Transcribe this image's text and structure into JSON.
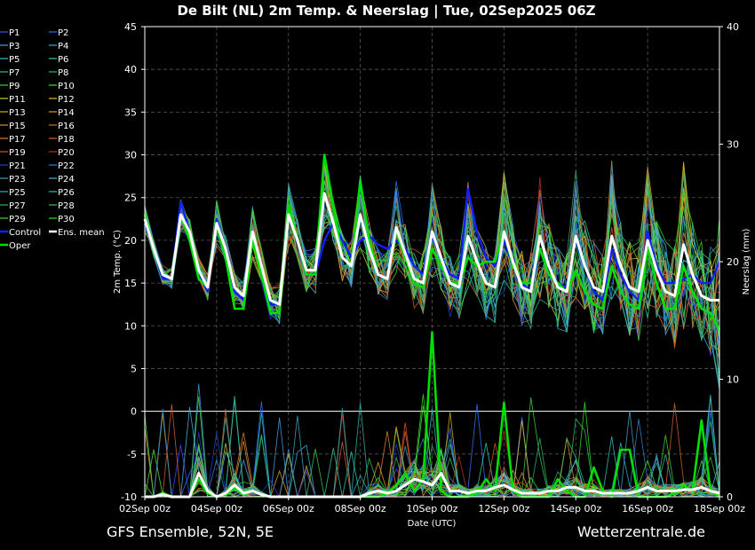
{
  "chart_data": {
    "type": "line",
    "title": "De Bilt  (NL)  2m Temp. & Neerslag | Tue, 02Sep2025 06Z",
    "xlabel": "Date (UTC)",
    "ylabel_left": "2m Temp. (°C)",
    "ylabel_right": "Neerslag (mm)",
    "footer_left": "GFS Ensemble, 52N, 5E",
    "footer_right": "Wetterzentrale.de",
    "x_ticks": [
      "02Sep 00z",
      "04Sep 00z",
      "06Sep 00z",
      "08Sep 00z",
      "10Sep 00z",
      "12Sep 00z",
      "14Sep 00z",
      "16Sep 00z",
      "18Sep 00z"
    ],
    "x_range_days": [
      0,
      16
    ],
    "ylim_left": [
      -10,
      45
    ],
    "ylim_right": [
      0,
      40
    ],
    "left_ticks": [
      -10,
      -5,
      0,
      5,
      10,
      15,
      20,
      25,
      30,
      35,
      40,
      45
    ],
    "right_ticks": [
      0,
      10,
      20,
      30,
      40
    ],
    "zero_line": 0,
    "grid": true,
    "legend_position": "left",
    "legend": [
      {
        "name": "P1",
        "color": "#3050ff"
      },
      {
        "name": "P2",
        "color": "#3070ff"
      },
      {
        "name": "P3",
        "color": "#40a0e0"
      },
      {
        "name": "P4",
        "color": "#30b0d0"
      },
      {
        "name": "P5",
        "color": "#30c0c0"
      },
      {
        "name": "P6",
        "color": "#30d0a0"
      },
      {
        "name": "P7",
        "color": "#30c080"
      },
      {
        "name": "P8",
        "color": "#30c060"
      },
      {
        "name": "P9",
        "color": "#40d040"
      },
      {
        "name": "P10",
        "color": "#50e030"
      },
      {
        "name": "P11",
        "color": "#c0d030"
      },
      {
        "name": "P12",
        "color": "#e0c030"
      },
      {
        "name": "P13",
        "color": "#d0b020"
      },
      {
        "name": "P14",
        "color": "#e0a020"
      },
      {
        "name": "P15",
        "color": "#d09040"
      },
      {
        "name": "P16",
        "color": "#c07040"
      },
      {
        "name": "P17",
        "color": "#e08030"
      },
      {
        "name": "P18",
        "color": "#d06030"
      },
      {
        "name": "P19",
        "color": "#e05020"
      },
      {
        "name": "P20",
        "color": "#c03020"
      },
      {
        "name": "P21",
        "color": "#2040d0"
      },
      {
        "name": "P22",
        "color": "#3080d0"
      },
      {
        "name": "P23",
        "color": "#40a0c0"
      },
      {
        "name": "P24",
        "color": "#50b0d0"
      },
      {
        "name": "P25",
        "color": "#30b0b0"
      },
      {
        "name": "P26",
        "color": "#30c0a0"
      },
      {
        "name": "P27",
        "color": "#30b070"
      },
      {
        "name": "P28",
        "color": "#40c050"
      },
      {
        "name": "P29",
        "color": "#50d040"
      },
      {
        "name": "P30",
        "color": "#30e020"
      },
      {
        "name": "Control",
        "color": "#1020ff"
      },
      {
        "name": "Ens. mean",
        "color": "#ffffff"
      },
      {
        "name": "Oper",
        "color": "#00e000"
      }
    ],
    "series": [
      {
        "name": "Ens. mean",
        "axis": "left",
        "x": [
          0,
          0.25,
          0.5,
          0.75,
          1,
          1.25,
          1.5,
          1.75,
          2,
          2.25,
          2.5,
          2.75,
          3,
          3.25,
          3.5,
          3.75,
          4,
          4.25,
          4.5,
          4.75,
          5,
          5.25,
          5.5,
          5.75,
          6,
          6.25,
          6.5,
          6.75,
          7,
          7.25,
          7.5,
          7.75,
          8,
          8.25,
          8.5,
          8.75,
          9,
          9.25,
          9.5,
          9.75,
          10,
          10.25,
          10.5,
          10.75,
          11,
          11.25,
          11.5,
          11.75,
          12,
          12.25,
          12.5,
          12.75,
          13,
          13.25,
          13.5,
          13.75,
          14,
          14.25,
          14.5,
          14.75,
          15,
          15.25,
          15.5,
          15.75,
          16
        ],
        "values": [
          22.5,
          19,
          16,
          15.5,
          23,
          21,
          16.5,
          14.5,
          22,
          19,
          14.5,
          13.5,
          21,
          17,
          13,
          12.5,
          23,
          20,
          16.5,
          16.5,
          25.5,
          22,
          18,
          17,
          23,
          19,
          16,
          15.5,
          21.5,
          18.5,
          15.5,
          15,
          21,
          18,
          15,
          14.5,
          20.5,
          17.5,
          15,
          14.5,
          21,
          17.5,
          14.5,
          14,
          20.5,
          17,
          14.5,
          14,
          20.5,
          17,
          14.5,
          14,
          20.5,
          17,
          14.5,
          14,
          20,
          16.5,
          14,
          13.5,
          19.5,
          16,
          13.5,
          13,
          13
        ]
      },
      {
        "name": "Control",
        "axis": "left",
        "x": [
          0,
          0.25,
          0.5,
          0.75,
          1,
          1.25,
          1.5,
          1.75,
          2,
          2.25,
          2.5,
          2.75,
          3,
          3.25,
          3.5,
          3.75,
          4,
          4.25,
          4.5,
          4.75,
          5,
          5.25,
          5.5,
          5.75,
          6,
          6.25,
          6.5,
          6.75,
          7,
          7.25,
          7.5,
          7.75,
          8,
          8.25,
          8.5,
          8.75,
          9,
          9.25,
          9.5,
          9.75,
          10,
          10.25,
          10.5,
          10.75,
          11,
          11.25,
          11.5,
          11.75,
          12,
          12.25,
          12.5,
          12.75,
          13,
          13.25,
          13.5,
          13.75,
          14,
          14.25,
          14.5,
          14.75,
          15,
          15.25,
          15.5,
          15.75,
          16
        ],
        "values": [
          22,
          19,
          15.5,
          15.5,
          24.5,
          21,
          16,
          14,
          22.5,
          19,
          14,
          13,
          21,
          17,
          12.5,
          12.5,
          23,
          20,
          16,
          16,
          20,
          22,
          20,
          18,
          20,
          20.5,
          19.5,
          19,
          20,
          19,
          17,
          16,
          20.5,
          18,
          16,
          15.5,
          26,
          21,
          18,
          17,
          20,
          17,
          15,
          14,
          19,
          16,
          15,
          14.5,
          20,
          17,
          14,
          13,
          19,
          16,
          14,
          13,
          21,
          17,
          15,
          15,
          15.5,
          16,
          15,
          15,
          17.5
        ]
      },
      {
        "name": "Oper",
        "axis": "left",
        "x": [
          0,
          0.25,
          0.5,
          0.75,
          1,
          1.25,
          1.5,
          1.75,
          2,
          2.25,
          2.5,
          2.75,
          3,
          3.25,
          3.5,
          3.75,
          4,
          4.25,
          4.5,
          4.75,
          5,
          5.25,
          5.5,
          5.75,
          6,
          6.25,
          6.5,
          6.75,
          7,
          7.25,
          7.5,
          7.75,
          8,
          8.25,
          8.5,
          8.75,
          9,
          9.25,
          9.5,
          9.75,
          10,
          10.25,
          10.5,
          10.75,
          11,
          11.25,
          11.5,
          11.75,
          12,
          12.25,
          12.5,
          12.75,
          13,
          13.25,
          13.5,
          13.75,
          14,
          14.25,
          14.5,
          14.75,
          15,
          15.25,
          15.5,
          15.75,
          16
        ],
        "values": [
          23,
          19,
          16,
          15.5,
          23,
          20,
          15.5,
          14.5,
          22,
          18,
          12,
          12,
          20,
          16,
          11.5,
          11.5,
          24,
          20,
          16,
          16,
          30,
          24,
          18,
          17,
          27,
          20,
          16,
          15.5,
          21,
          18,
          15,
          14.5,
          19,
          17,
          15,
          15,
          18,
          17,
          17.5,
          17.5,
          21,
          17,
          15,
          15,
          19,
          16,
          15,
          14,
          16.5,
          14,
          12.5,
          12,
          17,
          14,
          12.5,
          12,
          19,
          15,
          12,
          12,
          17,
          14,
          12,
          11.5,
          9.5
        ]
      },
      {
        "name": "Ens. mean",
        "axis": "right",
        "x": [
          0,
          0.25,
          0.5,
          0.75,
          1,
          1.25,
          1.5,
          1.75,
          2,
          2.25,
          2.5,
          2.75,
          3,
          3.25,
          3.5,
          3.75,
          4,
          4.25,
          4.5,
          4.75,
          5,
          5.25,
          5.5,
          5.75,
          6,
          6.25,
          6.5,
          6.75,
          7,
          7.25,
          7.5,
          7.75,
          8,
          8.25,
          8.5,
          8.75,
          9,
          9.25,
          9.5,
          9.75,
          10,
          10.25,
          10.5,
          10.75,
          11,
          11.25,
          11.5,
          11.75,
          12,
          12.25,
          12.5,
          12.75,
          13,
          13.25,
          13.5,
          13.75,
          14,
          14.25,
          14.5,
          14.75,
          15,
          15.25,
          15.5,
          15.75,
          16
        ],
        "values": [
          0,
          0,
          0.2,
          0,
          0,
          0,
          2,
          0.5,
          0,
          0.3,
          1,
          0.3,
          0.5,
          0.2,
          0,
          0,
          0,
          0,
          0,
          0,
          0,
          0,
          0,
          0,
          0,
          0.3,
          0.5,
          0.3,
          0.5,
          1,
          1.5,
          1.3,
          1,
          2,
          0.5,
          0.5,
          0.3,
          0.5,
          0.5,
          0.8,
          1,
          0.6,
          0.3,
          0.3,
          0.3,
          0.5,
          0.5,
          0.8,
          0.8,
          0.5,
          0.5,
          0.3,
          0.3,
          0.3,
          0.3,
          0.5,
          0.8,
          0.5,
          0.5,
          0.5,
          0.6,
          0.6,
          0.8,
          0.5,
          0.3
        ]
      },
      {
        "name": "Oper",
        "axis": "right",
        "x": [
          0,
          0.25,
          0.5,
          0.75,
          1,
          1.25,
          1.5,
          1.75,
          2,
          2.25,
          2.5,
          2.75,
          3,
          3.25,
          3.5,
          3.75,
          4,
          4.25,
          4.5,
          4.75,
          5,
          5.25,
          5.5,
          5.75,
          6,
          6.25,
          6.5,
          6.75,
          7,
          7.25,
          7.5,
          7.75,
          8,
          8.25,
          8.5,
          8.75,
          9,
          9.25,
          9.5,
          9.75,
          10,
          10.25,
          10.5,
          10.75,
          11,
          11.25,
          11.5,
          11.75,
          12,
          12.25,
          12.5,
          12.75,
          13,
          13.25,
          13.5,
          13.75,
          14,
          14.25,
          14.5,
          14.75,
          15,
          15.25,
          15.5,
          15.75,
          16
        ],
        "values": [
          0,
          0,
          0.3,
          0,
          0,
          0,
          1.5,
          0.3,
          0,
          0.2,
          0.8,
          0.2,
          0.5,
          0.2,
          0,
          0,
          0,
          0,
          0,
          0,
          0,
          0,
          0,
          0,
          0,
          0,
          0,
          0.3,
          1,
          2,
          0.5,
          1.5,
          14,
          0.5,
          0,
          0,
          0,
          0.3,
          1.5,
          0.5,
          8,
          0.5,
          0,
          0,
          0,
          0,
          1.5,
          0.5,
          0,
          0,
          2.5,
          0.5,
          0,
          4,
          4,
          0,
          0,
          0,
          0,
          0.3,
          1,
          0.5,
          6.5,
          0.5,
          0
        ]
      }
    ]
  }
}
